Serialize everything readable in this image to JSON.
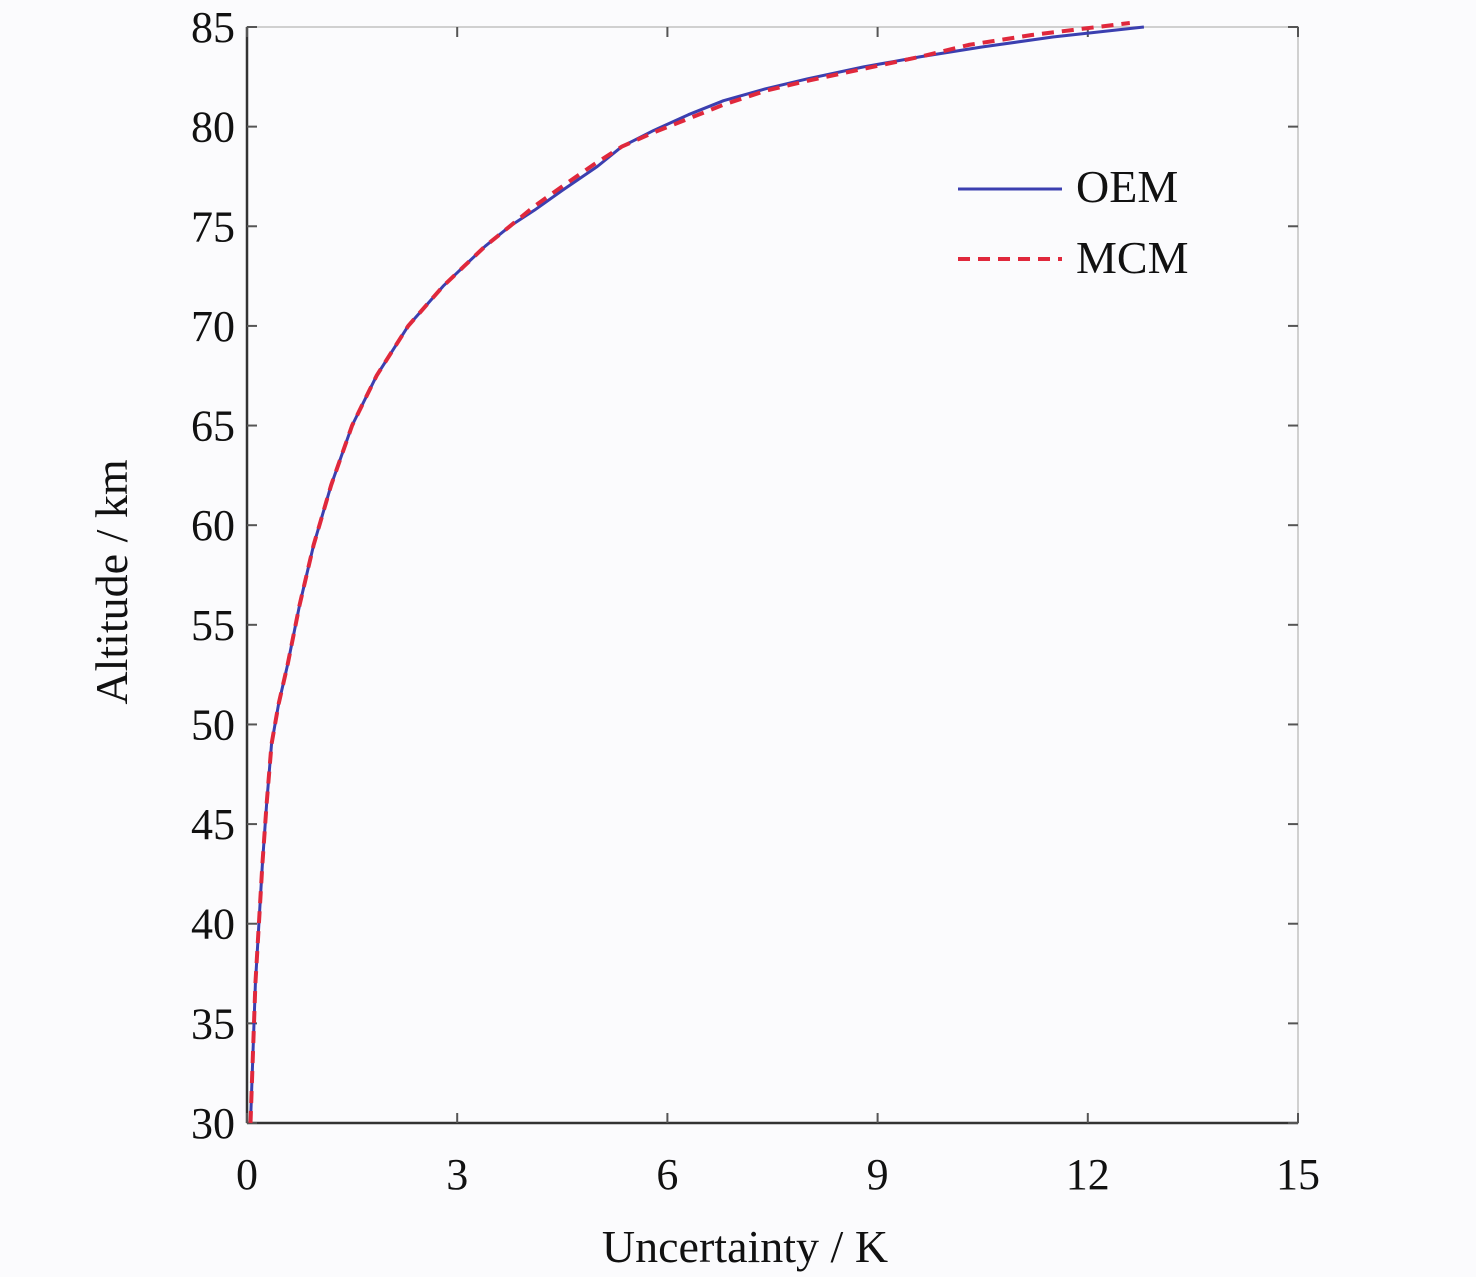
{
  "chart_data": {
    "type": "line",
    "xlabel": "Uncertainty / K",
    "ylabel": "Altitude / km",
    "xlim": [
      0,
      15
    ],
    "ylim": [
      30,
      85
    ],
    "xticks": [
      "0",
      "3",
      "6",
      "9",
      "12",
      "15"
    ],
    "yticks": [
      "30",
      "35",
      "40",
      "45",
      "50",
      "55",
      "60",
      "65",
      "70",
      "75",
      "80",
      "85"
    ],
    "grid": false,
    "legend_position": "top-right",
    "series": [
      {
        "name": "OEM",
        "style": "solid",
        "color": "#3b3fb0",
        "x": [
          0.05,
          0.08,
          0.12,
          0.17,
          0.22,
          0.28,
          0.35,
          0.45,
          0.58,
          0.75,
          0.95,
          1.2,
          1.5,
          1.85,
          2.3,
          2.8,
          3.1,
          3.4,
          3.75,
          4.1,
          4.5,
          5.0,
          5.35,
          5.8,
          6.3,
          6.8,
          7.4,
          8.0,
          8.8,
          9.6,
          10.5,
          11.5,
          12.8
        ],
        "y": [
          30,
          33,
          37,
          40,
          43,
          46,
          49,
          51,
          53,
          56,
          59,
          62,
          65,
          67.5,
          70,
          72,
          73,
          74,
          75,
          75.8,
          76.8,
          78,
          79,
          79.8,
          80.6,
          81.3,
          81.9,
          82.4,
          83,
          83.5,
          84,
          84.5,
          85
        ]
      },
      {
        "name": "MCM",
        "style": "dashed",
        "color": "#e0283c",
        "x": [
          0.05,
          0.08,
          0.12,
          0.17,
          0.22,
          0.28,
          0.35,
          0.45,
          0.58,
          0.75,
          0.95,
          1.2,
          1.5,
          1.85,
          2.3,
          2.8,
          3.1,
          3.4,
          3.75,
          4.1,
          4.5,
          4.95,
          5.35,
          5.8,
          6.3,
          6.8,
          7.4,
          8.0,
          8.8,
          9.6,
          10.3,
          11.2,
          12.6
        ],
        "y": [
          30,
          33,
          37,
          40,
          43,
          46,
          49,
          51,
          53,
          56,
          59,
          62,
          65,
          67.5,
          70,
          72,
          73,
          74,
          75,
          76,
          77,
          78.1,
          79,
          79.7,
          80.4,
          81.1,
          81.8,
          82.3,
          82.9,
          83.5,
          84.1,
          84.6,
          85.2
        ]
      }
    ]
  }
}
